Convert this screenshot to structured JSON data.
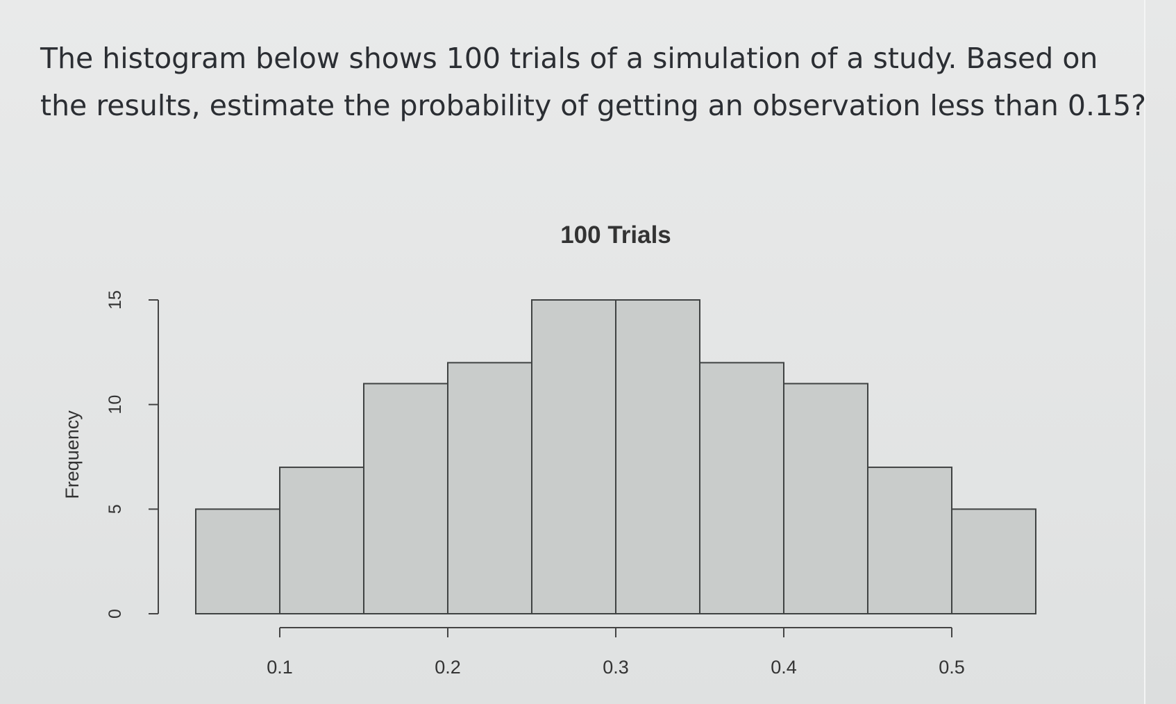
{
  "question": {
    "text": "The histogram below shows 100 trials of a simulation of a study. Based on the results, estimate the probability of getting an observation less than 0.15?"
  },
  "chart_data": {
    "type": "bar",
    "title": "100 Trials",
    "xlabel": "",
    "ylabel": "Frequency",
    "bins": [
      {
        "start": 0.05,
        "end": 0.1,
        "value": 5
      },
      {
        "start": 0.1,
        "end": 0.15,
        "value": 7
      },
      {
        "start": 0.15,
        "end": 0.2,
        "value": 11
      },
      {
        "start": 0.2,
        "end": 0.25,
        "value": 12
      },
      {
        "start": 0.25,
        "end": 0.3,
        "value": 15
      },
      {
        "start": 0.3,
        "end": 0.35,
        "value": 15
      },
      {
        "start": 0.35,
        "end": 0.4,
        "value": 12
      },
      {
        "start": 0.4,
        "end": 0.45,
        "value": 11
      },
      {
        "start": 0.45,
        "end": 0.5,
        "value": 7
      },
      {
        "start": 0.5,
        "end": 0.55,
        "value": 5
      }
    ],
    "x_ticks": [
      "0.1",
      "0.2",
      "0.3",
      "0.4",
      "0.5"
    ],
    "x_tick_values": [
      0.1,
      0.2,
      0.3,
      0.4,
      0.5
    ],
    "y_ticks": [
      "0",
      "5",
      "10",
      "15"
    ],
    "y_tick_values": [
      0,
      5,
      10,
      15
    ],
    "xlim": [
      0.05,
      0.55
    ],
    "ylim": [
      0,
      15
    ],
    "grid": false,
    "bar_color": "#c9cccb",
    "bar_edge_color": "#3f4242"
  }
}
